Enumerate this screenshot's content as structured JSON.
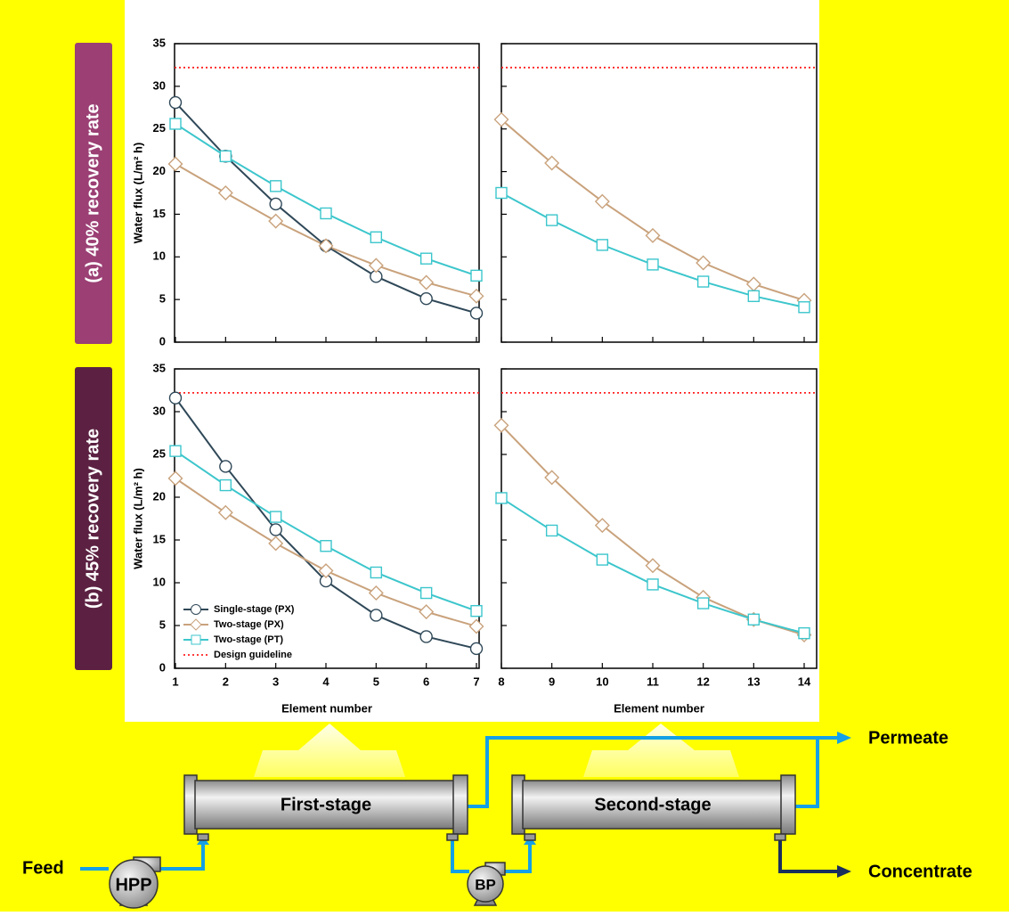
{
  "chart_data": [
    {
      "type": "line",
      "x": [
        1,
        2,
        3,
        4,
        5,
        6,
        7
      ],
      "xlim": [
        1,
        7
      ],
      "xticks": [
        1,
        2,
        3,
        4,
        5,
        6,
        7
      ],
      "xtick_labels": false,
      "ylabel": "Water flux (L/m² h)",
      "ylim": [
        0,
        35
      ],
      "yticks": [
        0,
        5,
        10,
        15,
        20,
        25,
        30,
        35
      ],
      "ytick_labels": true,
      "guideline": {
        "value": 32.2,
        "color": "#ff2020"
      },
      "series": [
        {
          "color": "#2f4858",
          "marker": "circle",
          "values": [
            28.1,
            21.8,
            16.2,
            11.3,
            7.7,
            5.1,
            3.4
          ]
        },
        {
          "color": "#c9a27c",
          "marker": "diamond",
          "values": [
            20.9,
            17.5,
            14.2,
            11.3,
            9.0,
            7.0,
            5.4
          ]
        },
        {
          "color": "#3cc6cc",
          "marker": "square",
          "values": [
            25.6,
            21.8,
            18.3,
            15.1,
            12.3,
            9.8,
            7.8
          ]
        }
      ]
    },
    {
      "type": "line",
      "x": [
        8,
        9,
        10,
        11,
        12,
        13,
        14
      ],
      "xlim": [
        8,
        14
      ],
      "xticks": [
        8,
        9,
        10,
        11,
        12,
        13,
        14
      ],
      "xtick_labels": false,
      "ylim": [
        0,
        35
      ],
      "yticks": [
        0,
        5,
        10,
        15,
        20,
        25,
        30,
        35
      ],
      "ytick_labels": false,
      "guideline": {
        "value": 32.2,
        "color": "#ff2020"
      },
      "series": [
        {
          "color": "#c9a27c",
          "marker": "diamond",
          "values": [
            26.1,
            21.0,
            16.5,
            12.5,
            9.3,
            6.8,
            4.9
          ]
        },
        {
          "color": "#3cc6cc",
          "marker": "square",
          "values": [
            17.5,
            14.3,
            11.4,
            9.1,
            7.1,
            5.4,
            4.1
          ]
        }
      ]
    },
    {
      "type": "line",
      "x": [
        1,
        2,
        3,
        4,
        5,
        6,
        7
      ],
      "xlim": [
        1,
        7
      ],
      "xticks": [
        1,
        2,
        3,
        4,
        5,
        6,
        7
      ],
      "xtick_labels": true,
      "xlabel": "Element number",
      "ylabel": "Water flux (L/m² h)",
      "ylim": [
        0,
        35
      ],
      "yticks": [
        0,
        5,
        10,
        15,
        20,
        25,
        30,
        35
      ],
      "ytick_labels": true,
      "legend": "lower left",
      "guideline": {
        "name": "Design guideline",
        "value": 32.2,
        "color": "#ff2020"
      },
      "series": [
        {
          "name": "Single-stage (PX)",
          "color": "#2f4858",
          "marker": "circle",
          "values": [
            31.6,
            23.6,
            16.2,
            10.2,
            6.2,
            3.7,
            2.3
          ]
        },
        {
          "name": "Two-stage (PX)",
          "color": "#c9a27c",
          "marker": "diamond",
          "values": [
            22.2,
            18.2,
            14.6,
            11.4,
            8.8,
            6.6,
            4.9
          ]
        },
        {
          "name": "Two-stage (PT)",
          "color": "#3cc6cc",
          "marker": "square",
          "values": [
            25.4,
            21.4,
            17.7,
            14.3,
            11.2,
            8.8,
            6.7
          ]
        }
      ]
    },
    {
      "type": "line",
      "x": [
        8,
        9,
        10,
        11,
        12,
        13,
        14
      ],
      "xlim": [
        8,
        14
      ],
      "xticks": [
        8,
        9,
        10,
        11,
        12,
        13,
        14
      ],
      "xtick_labels": true,
      "xlabel": "Element number",
      "ylim": [
        0,
        35
      ],
      "yticks": [
        0,
        5,
        10,
        15,
        20,
        25,
        30,
        35
      ],
      "ytick_labels": false,
      "guideline": {
        "value": 32.2,
        "color": "#ff2020"
      },
      "series": [
        {
          "color": "#c9a27c",
          "marker": "diamond",
          "values": [
            28.4,
            22.3,
            16.7,
            12.0,
            8.3,
            5.7,
            3.9
          ]
        },
        {
          "color": "#3cc6cc",
          "marker": "square",
          "values": [
            19.9,
            16.1,
            12.7,
            9.8,
            7.6,
            5.7,
            4.1
          ]
        }
      ]
    }
  ],
  "row_labels": [
    "(a) 40% recovery rate",
    "(b) 45% recovery rate"
  ],
  "diagram": {
    "feed": "Feed",
    "hpp": "HPP",
    "first_stage": "First-stage",
    "bp": "BP",
    "second_stage": "Second-stage",
    "permeate": "Permeate",
    "concentrate": "Concentrate"
  }
}
